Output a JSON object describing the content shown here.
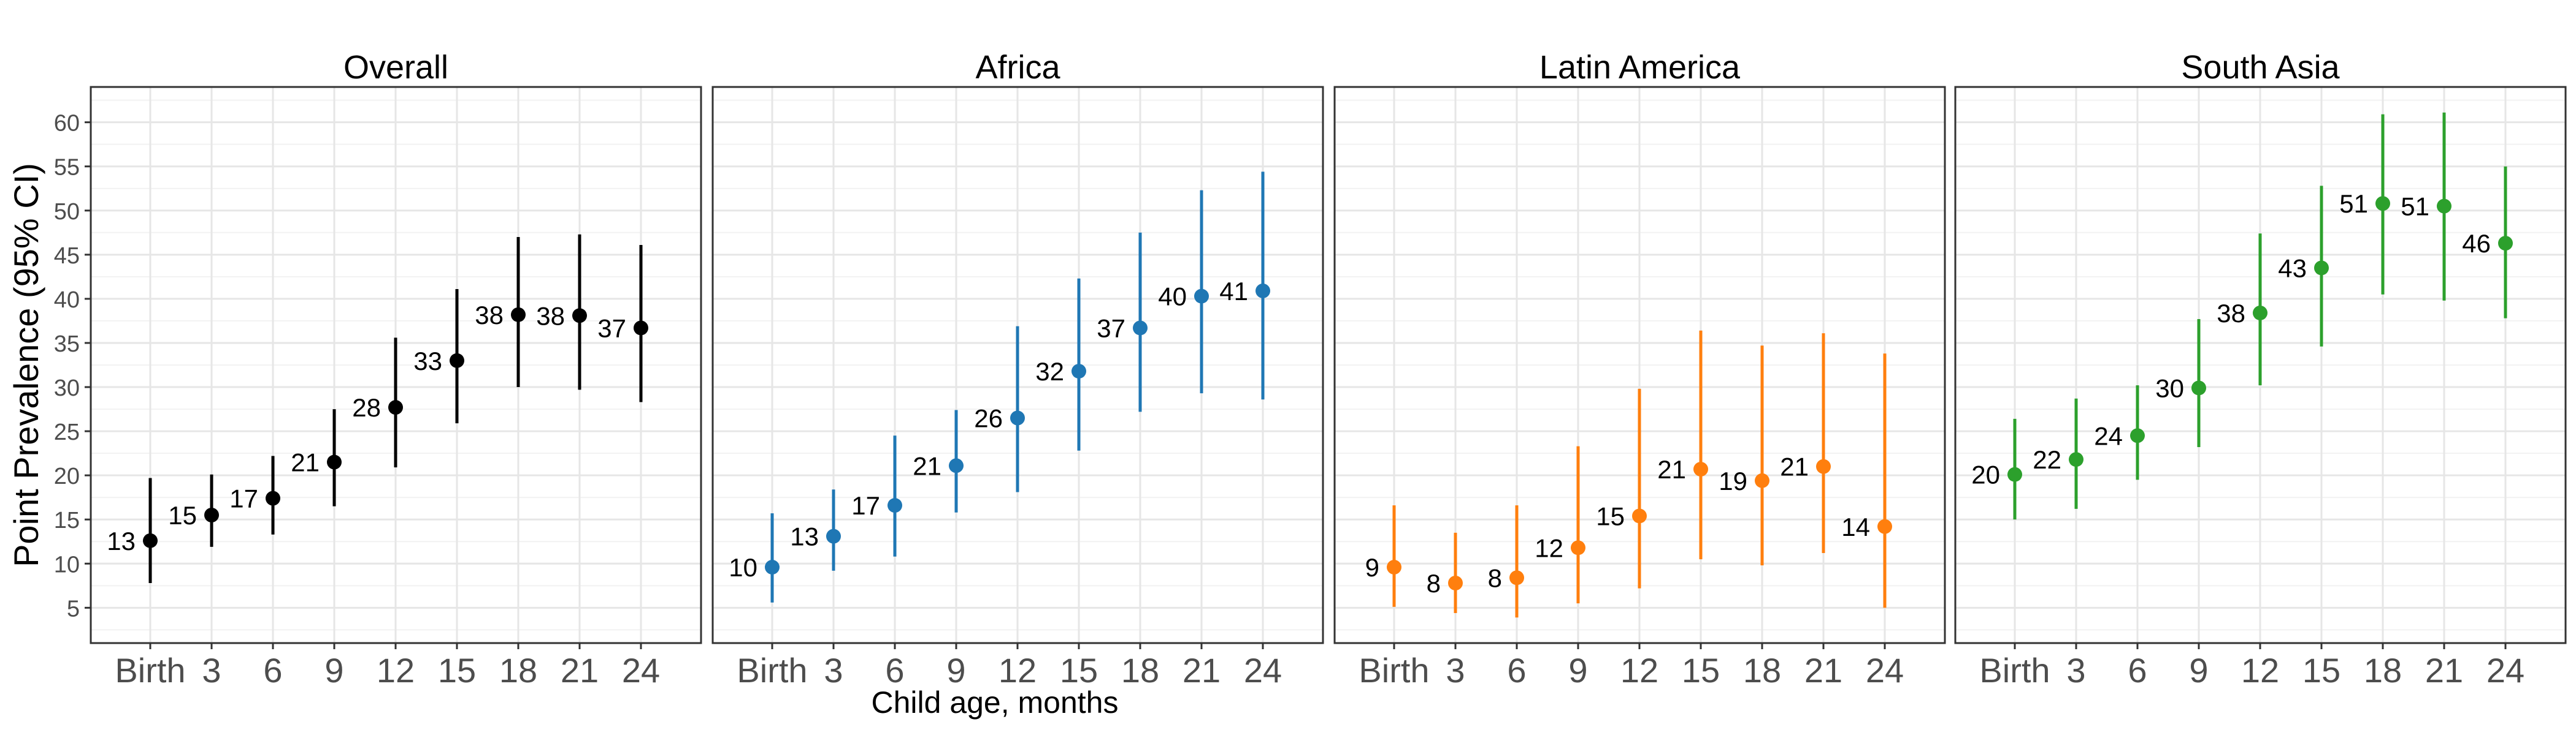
{
  "chart_data": {
    "type": "scatter",
    "ylabel": "Point Prevalence (95% CI)",
    "xlabel": "Child age, months",
    "x_ticks": [
      "Birth",
      "3",
      "6",
      "9",
      "12",
      "15",
      "18",
      "21",
      "24"
    ],
    "ylim": [
      1,
      64
    ],
    "y_ticks": [
      5,
      10,
      15,
      20,
      25,
      30,
      35,
      40,
      45,
      50,
      55,
      60
    ],
    "grid": true,
    "panels": [
      {
        "title": "Overall",
        "color": "#000000",
        "labels": [
          "13",
          "15",
          "17",
          "21",
          "28",
          "33",
          "38",
          "38",
          "37"
        ],
        "points": [
          {
            "x": "Birth",
            "y": 12.6,
            "lo": 7.8,
            "hi": 19.7
          },
          {
            "x": "3",
            "y": 15.5,
            "lo": 11.9,
            "hi": 20.1
          },
          {
            "x": "6",
            "y": 17.4,
            "lo": 13.3,
            "hi": 22.2
          },
          {
            "x": "9",
            "y": 21.5,
            "lo": 16.5,
            "hi": 27.5
          },
          {
            "x": "12",
            "y": 27.7,
            "lo": 20.9,
            "hi": 35.6
          },
          {
            "x": "15",
            "y": 33.0,
            "lo": 25.9,
            "hi": 41.1
          },
          {
            "x": "18",
            "y": 38.2,
            "lo": 30.0,
            "hi": 47.0
          },
          {
            "x": "21",
            "y": 38.1,
            "lo": 29.7,
            "hi": 47.3
          },
          {
            "x": "24",
            "y": 36.7,
            "lo": 28.3,
            "hi": 46.1
          }
        ]
      },
      {
        "title": "Africa",
        "color": "#1f77b4",
        "labels": [
          "10",
          "13",
          "17",
          "21",
          "26",
          "32",
          "37",
          "40",
          "41"
        ],
        "points": [
          {
            "x": "Birth",
            "y": 9.6,
            "lo": 5.6,
            "hi": 15.7
          },
          {
            "x": "3",
            "y": 13.1,
            "lo": 9.2,
            "hi": 18.4
          },
          {
            "x": "6",
            "y": 16.6,
            "lo": 10.8,
            "hi": 24.5
          },
          {
            "x": "9",
            "y": 21.1,
            "lo": 15.8,
            "hi": 27.4
          },
          {
            "x": "12",
            "y": 26.5,
            "lo": 18.1,
            "hi": 36.9
          },
          {
            "x": "15",
            "y": 31.8,
            "lo": 22.8,
            "hi": 42.3
          },
          {
            "x": "18",
            "y": 36.7,
            "lo": 27.2,
            "hi": 47.5
          },
          {
            "x": "21",
            "y": 40.3,
            "lo": 29.3,
            "hi": 52.3
          },
          {
            "x": "24",
            "y": 40.9,
            "lo": 28.6,
            "hi": 54.4
          }
        ]
      },
      {
        "title": "Latin America",
        "color": "#ff7f0e",
        "labels": [
          "9",
          "8",
          "8",
          "12",
          "15",
          "21",
          "19",
          "21",
          "14"
        ],
        "points": [
          {
            "x": "Birth",
            "y": 9.6,
            "lo": 5.1,
            "hi": 16.6
          },
          {
            "x": "3",
            "y": 7.8,
            "lo": 4.4,
            "hi": 13.5
          },
          {
            "x": "6",
            "y": 8.4,
            "lo": 3.9,
            "hi": 16.6
          },
          {
            "x": "9",
            "y": 11.8,
            "lo": 5.5,
            "hi": 23.3
          },
          {
            "x": "12",
            "y": 15.4,
            "lo": 7.2,
            "hi": 29.8
          },
          {
            "x": "15",
            "y": 20.7,
            "lo": 10.5,
            "hi": 36.4
          },
          {
            "x": "18",
            "y": 19.4,
            "lo": 9.8,
            "hi": 34.7
          },
          {
            "x": "21",
            "y": 21.0,
            "lo": 11.2,
            "hi": 36.1
          },
          {
            "x": "24",
            "y": 14.2,
            "lo": 5.0,
            "hi": 33.8
          }
        ]
      },
      {
        "title": "South Asia",
        "color": "#2ca02c",
        "labels": [
          "20",
          "22",
          "24",
          "30",
          "38",
          "43",
          "51",
          "51",
          "46"
        ],
        "points": [
          {
            "x": "Birth",
            "y": 20.1,
            "lo": 15.0,
            "hi": 26.4
          },
          {
            "x": "3",
            "y": 21.8,
            "lo": 16.2,
            "hi": 28.7
          },
          {
            "x": "6",
            "y": 24.5,
            "lo": 19.5,
            "hi": 30.2
          },
          {
            "x": "9",
            "y": 29.9,
            "lo": 23.2,
            "hi": 37.7
          },
          {
            "x": "12",
            "y": 38.4,
            "lo": 30.2,
            "hi": 47.4
          },
          {
            "x": "15",
            "y": 43.5,
            "lo": 34.6,
            "hi": 52.8
          },
          {
            "x": "18",
            "y": 50.8,
            "lo": 40.5,
            "hi": 60.9
          },
          {
            "x": "21",
            "y": 50.5,
            "lo": 39.8,
            "hi": 61.1
          },
          {
            "x": "24",
            "y": 46.3,
            "lo": 37.8,
            "hi": 55.0
          }
        ]
      }
    ]
  }
}
